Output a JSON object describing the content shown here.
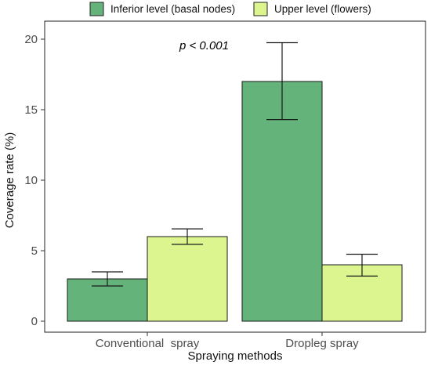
{
  "chart_data": {
    "type": "bar",
    "title": "",
    "xlabel": "Spraying methods",
    "ylabel": "Coverage rate (%)",
    "categories": [
      "Conventional  spray",
      "Dropleg spray"
    ],
    "series": [
      {
        "name": "Inferior level (basal nodes)",
        "color": "#63b37b",
        "values": [
          3.0,
          17.0
        ],
        "error_low": [
          2.5,
          14.3
        ],
        "error_high": [
          3.5,
          19.75
        ]
      },
      {
        "name": "Upper level (flowers)",
        "color": "#dcf58e",
        "values": [
          6.0,
          4.0
        ],
        "error_low": [
          5.45,
          3.2
        ],
        "error_high": [
          6.55,
          4.75
        ]
      }
    ],
    "ylim": [
      0,
      21.5
    ],
    "yticks": [
      0,
      5,
      10,
      15,
      20
    ],
    "grid": false,
    "legend_position": "top",
    "annotation": "p < 0.001"
  }
}
